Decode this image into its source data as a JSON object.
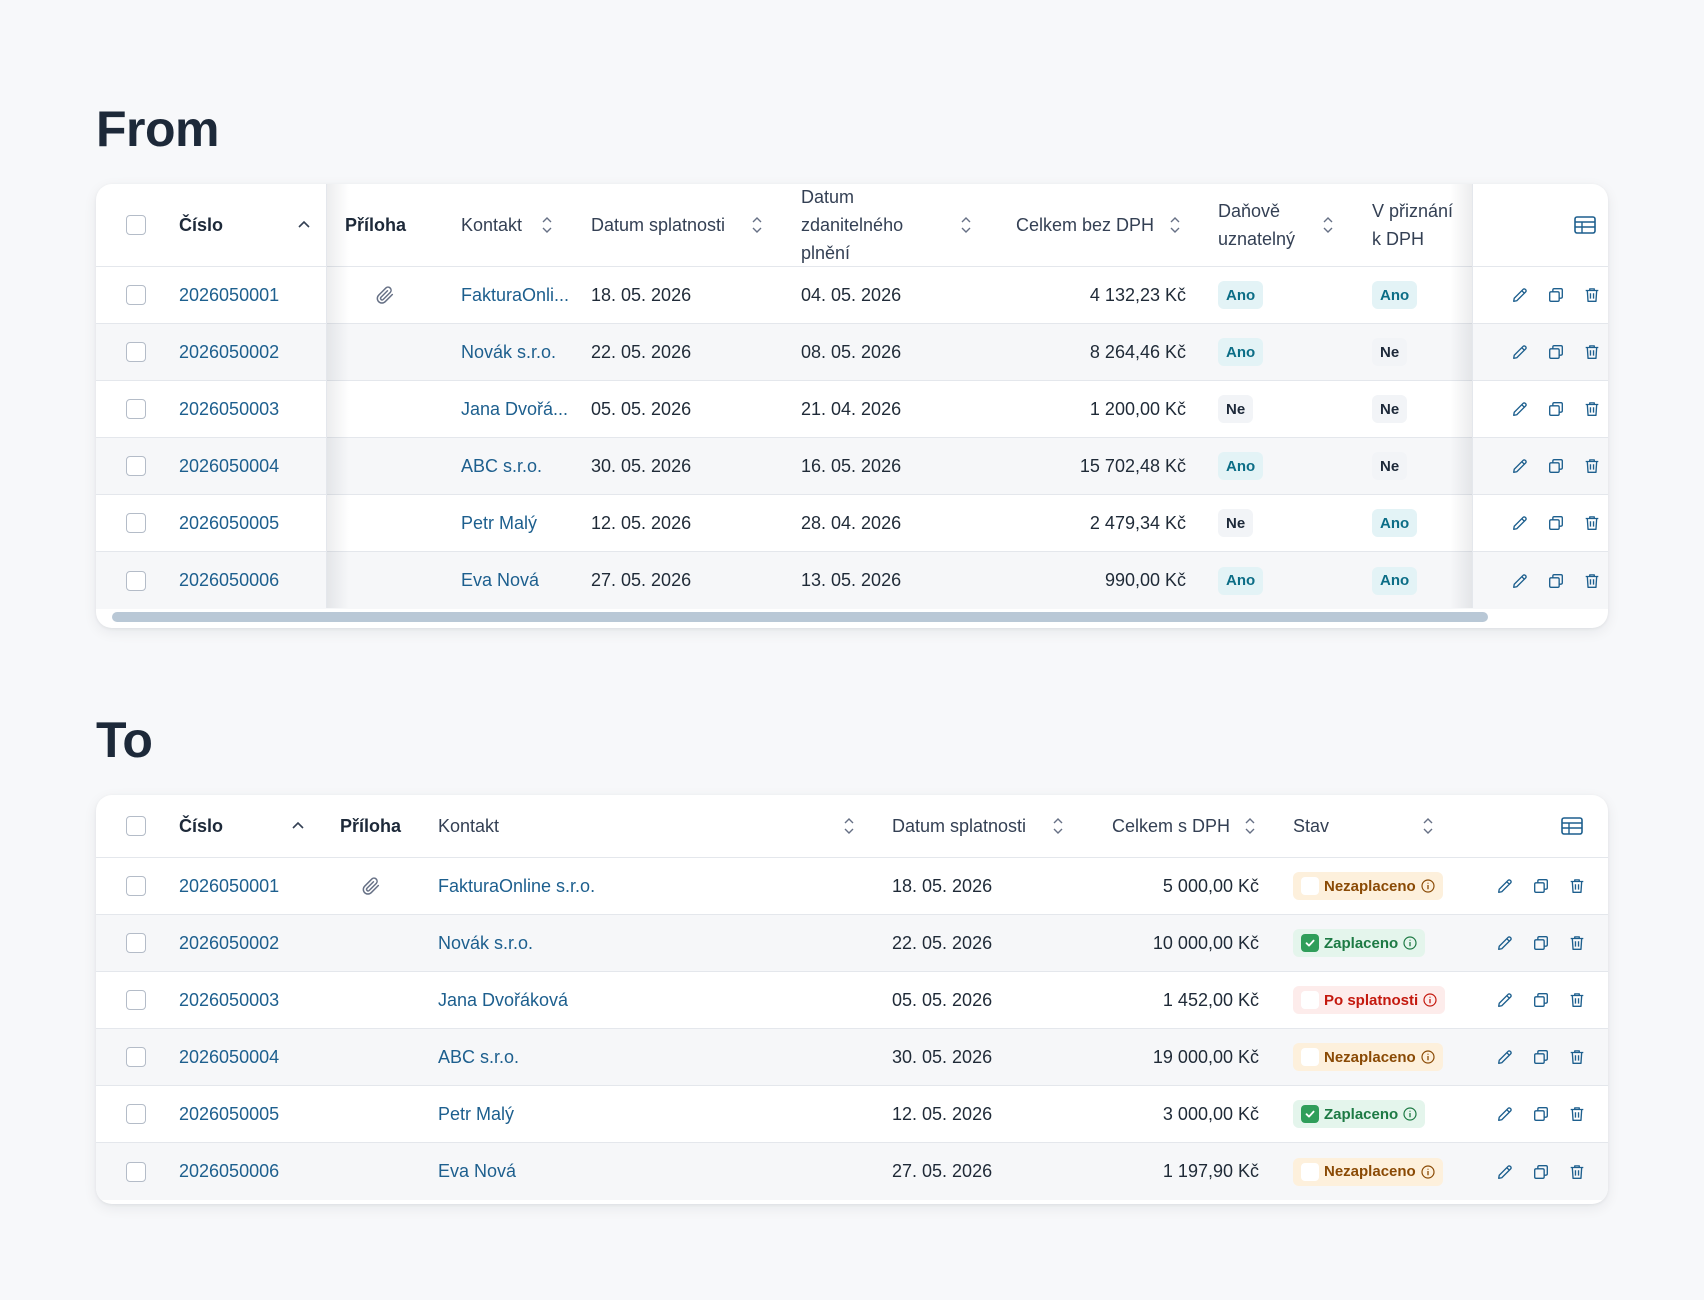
{
  "from": {
    "title": "From",
    "headers": {
      "cislo": "Číslo",
      "priloha": "Příloha",
      "kontakt": "Kontakt",
      "datum_splatnosti": "Datum splatnosti",
      "datum_zdanitelneho": "Datum zdanitelného plnění",
      "celkem_bez_dph": "Celkem bez DPH",
      "danove_uznatelny": "Daňově uznatelný",
      "v_priznani": "V přiznání k DPH"
    },
    "rows": [
      {
        "cislo": "2026050001",
        "priloha": true,
        "kontakt": "FakturaOnli...",
        "splatnost": "18. 05. 2026",
        "zdanitelne": "04. 05. 2026",
        "celkem": "4 132,23 Kč",
        "danove": "Ano",
        "priznani": "Ano"
      },
      {
        "cislo": "2026050002",
        "priloha": false,
        "kontakt": "Novák s.r.o.",
        "splatnost": "22. 05. 2026",
        "zdanitelne": "08. 05. 2026",
        "celkem": "8 264,46 Kč",
        "danove": "Ano",
        "priznani": "Ne"
      },
      {
        "cislo": "2026050003",
        "priloha": false,
        "kontakt": "Jana Dvořá...",
        "splatnost": "05. 05. 2026",
        "zdanitelne": "21. 04. 2026",
        "celkem": "1 200,00 Kč",
        "danove": "Ne",
        "priznani": "Ne"
      },
      {
        "cislo": "2026050004",
        "priloha": false,
        "kontakt": "ABC s.r.o.",
        "splatnost": "30. 05. 2026",
        "zdanitelne": "16. 05. 2026",
        "celkem": "15 702,48 Kč",
        "danove": "Ano",
        "priznani": "Ne"
      },
      {
        "cislo": "2026050005",
        "priloha": false,
        "kontakt": "Petr Malý",
        "splatnost": "12. 05. 2026",
        "zdanitelne": "28. 04. 2026",
        "celkem": "2 479,34 Kč",
        "danove": "Ne",
        "priznani": "Ano"
      },
      {
        "cislo": "2026050006",
        "priloha": false,
        "kontakt": "Eva Nová",
        "splatnost": "27. 05. 2026",
        "zdanitelne": "13. 05. 2026",
        "celkem": "990,00 Kč",
        "danove": "Ano",
        "priznani": "Ano"
      }
    ]
  },
  "to": {
    "title": "To",
    "headers": {
      "cislo": "Číslo",
      "priloha": "Příloha",
      "kontakt": "Kontakt",
      "datum_splatnosti": "Datum splatnosti",
      "celkem_s_dph": "Celkem s DPH",
      "stav": "Stav"
    },
    "rows": [
      {
        "cislo": "2026050001",
        "priloha": true,
        "kontakt": "FakturaOnline s.r.o.",
        "splatnost": "18. 05. 2026",
        "celkem": "5 000,00 Kč",
        "stav": "Nezaplaceno",
        "stav_type": "unpaid"
      },
      {
        "cislo": "2026050002",
        "priloha": false,
        "kontakt": "Novák s.r.o.",
        "splatnost": "22. 05. 2026",
        "celkem": "10 000,00 Kč",
        "stav": "Zaplaceno",
        "stav_type": "paid"
      },
      {
        "cislo": "2026050003",
        "priloha": false,
        "kontakt": "Jana Dvořáková",
        "splatnost": "05. 05. 2026",
        "celkem": "1 452,00 Kč",
        "stav": "Po splatnosti",
        "stav_type": "overdue"
      },
      {
        "cislo": "2026050004",
        "priloha": false,
        "kontakt": "ABC s.r.o.",
        "splatnost": "30. 05. 2026",
        "celkem": "19 000,00 Kč",
        "stav": "Nezaplaceno",
        "stav_type": "unpaid"
      },
      {
        "cislo": "2026050005",
        "priloha": false,
        "kontakt": "Petr Malý",
        "splatnost": "12. 05. 2026",
        "celkem": "3 000,00 Kč",
        "stav": "Zaplaceno",
        "stav_type": "paid"
      },
      {
        "cislo": "2026050006",
        "priloha": false,
        "kontakt": "Eva Nová",
        "splatnost": "27. 05. 2026",
        "celkem": "1 197,90 Kč",
        "stav": "Nezaplaceno",
        "stav_type": "unpaid"
      }
    ]
  },
  "icons": {
    "sort_asc": "chevron-up-icon",
    "sort_both": "sort-icon",
    "attachment": "paperclip-icon",
    "columns": "table-columns-icon",
    "edit": "pencil-icon",
    "duplicate": "copy-icon",
    "delete": "trash-icon",
    "info": "info-icon"
  },
  "colors": {
    "link": "#1d5f8e",
    "unpaid_bg": "#fdf0dc",
    "paid_bg": "#e4f5ec",
    "overdue_bg": "#fdeceb",
    "ano_bg": "#e3f3f6"
  }
}
